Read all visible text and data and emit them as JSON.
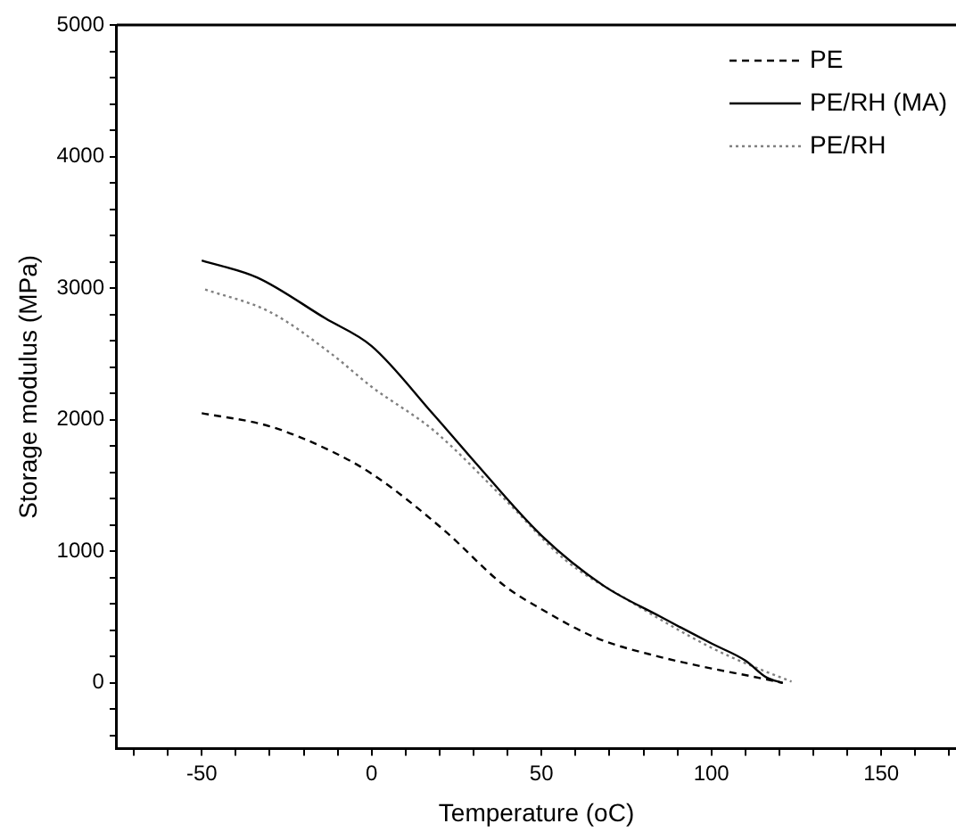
{
  "chart_data": {
    "type": "line",
    "xlabel": "Temperature (oC)",
    "ylabel": "Storage modulus (MPa)",
    "xlim": [
      -75,
      172
    ],
    "ylim": [
      -500,
      5000
    ],
    "xticks": [
      {
        "value": -70,
        "label": null
      },
      {
        "value": -60,
        "label": null
      },
      -50,
      {
        "value": -40,
        "label": null
      },
      {
        "value": -30,
        "label": null
      },
      {
        "value": -20,
        "label": null
      },
      {
        "value": -10,
        "label": null
      },
      0,
      {
        "value": 10,
        "label": null
      },
      {
        "value": 20,
        "label": null
      },
      {
        "value": 30,
        "label": null
      },
      {
        "value": 40,
        "label": null
      },
      50,
      {
        "value": 60,
        "label": null
      },
      {
        "value": 70,
        "label": null
      },
      {
        "value": 80,
        "label": null
      },
      {
        "value": 90,
        "label": null
      },
      100,
      {
        "value": 110,
        "label": null
      },
      {
        "value": 120,
        "label": null
      },
      {
        "value": 130,
        "label": null
      },
      {
        "value": 140,
        "label": null
      },
      150,
      {
        "value": 160,
        "label": null
      },
      {
        "value": 170,
        "label": null
      }
    ],
    "yticks": [
      {
        "value": -400,
        "label": null
      },
      {
        "value": -200,
        "label": null
      },
      0,
      {
        "value": 200,
        "label": null
      },
      {
        "value": 400,
        "label": null
      },
      {
        "value": 600,
        "label": null
      },
      {
        "value": 800,
        "label": null
      },
      1000,
      {
        "value": 1200,
        "label": null
      },
      {
        "value": 1400,
        "label": null
      },
      {
        "value": 1600,
        "label": null
      },
      {
        "value": 1800,
        "label": null
      },
      2000,
      {
        "value": 2200,
        "label": null
      },
      {
        "value": 2400,
        "label": null
      },
      {
        "value": 2600,
        "label": null
      },
      {
        "value": 2800,
        "label": null
      },
      3000,
      {
        "value": 3200,
        "label": null
      },
      {
        "value": 3400,
        "label": null
      },
      {
        "value": 3600,
        "label": null
      },
      {
        "value": 3800,
        "label": null
      },
      4000,
      {
        "value": 4200,
        "label": null
      },
      {
        "value": 4400,
        "label": null
      },
      {
        "value": 4600,
        "label": null
      },
      {
        "value": 4800,
        "label": null
      },
      5000
    ],
    "grid": false,
    "legend": "top right",
    "marker": "none",
    "series": [
      {
        "name": "PE",
        "color": "#000000",
        "line_style": "dashed",
        "x": [
          -50,
          -30,
          -11.8,
          0,
          20.9,
          39,
          50,
          66.3,
          84.5,
          100,
          111.8,
          121
        ],
        "values": [
          2050,
          1950,
          1760,
          1590,
          1170,
          740,
          560,
          340,
          200,
          110,
          50,
          0
        ]
      },
      {
        "name": "PE/RH (MA)",
        "color": "#000000",
        "line_style": "solid",
        "x": [
          -50,
          -33.6,
          -13.6,
          0,
          18.2,
          30,
          50,
          68.2,
          84.5,
          100,
          110,
          116.3,
          121
        ],
        "values": [
          3210,
          3080,
          2770,
          2560,
          2040,
          1690,
          1120,
          740,
          510,
          300,
          170,
          40,
          0
        ]
      },
      {
        "name": "PE/RH",
        "color": "#808080",
        "line_style": "dotted",
        "x": [
          -49,
          -30,
          -11.8,
          0,
          18.2,
          39,
          57.2,
          75.4,
          99.8,
          111.8,
          123.6
        ],
        "values": [
          2990,
          2820,
          2500,
          2250,
          1920,
          1400,
          930,
          630,
          270,
          130,
          10
        ]
      }
    ]
  }
}
